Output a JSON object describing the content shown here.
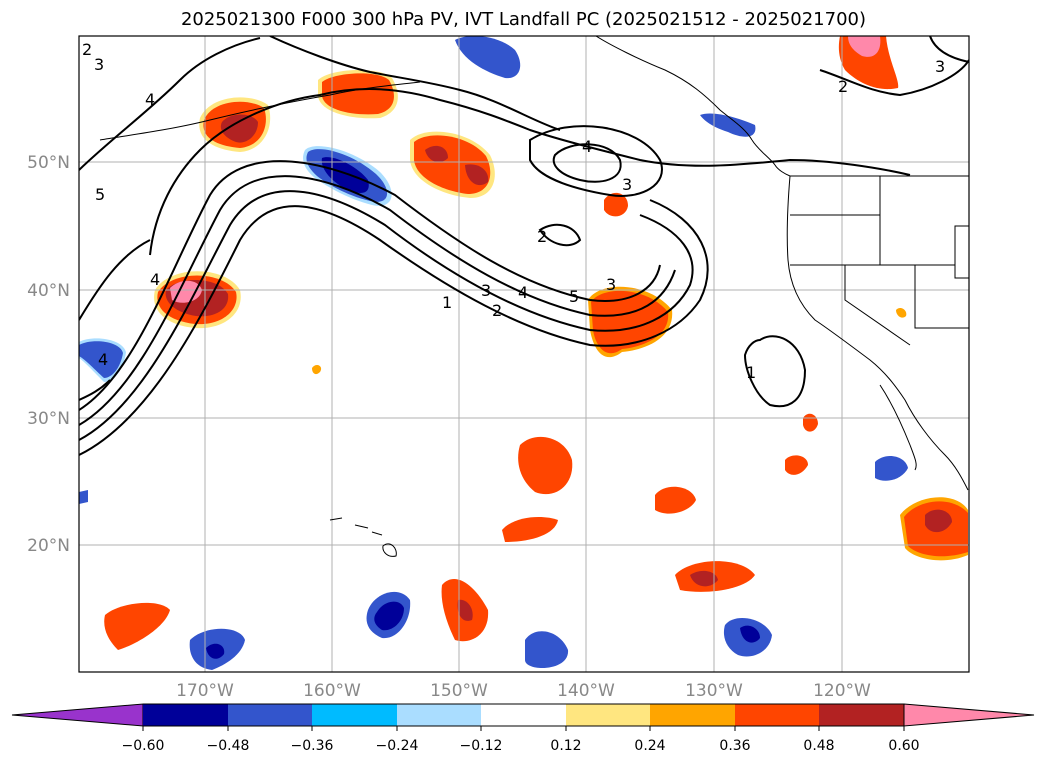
{
  "title": "2025021300 F000 300 hPa PV, IVT Landfall PC (2025021512 - 2025021700)",
  "lat_labels": [
    "50°N",
    "40°N",
    "30°N",
    "20°N"
  ],
  "lon_labels": [
    "170°W",
    "160°W",
    "150°W",
    "140°W",
    "130°W",
    "120°W"
  ],
  "colorbar": {
    "colors": [
      "#9933cc",
      "#000099",
      "#3355cc",
      "#00bbff",
      "#aaddff",
      "#ffffff",
      "#ffe680",
      "#ffa500",
      "#ff4500",
      "#b22222",
      "#ff88aa"
    ],
    "labels": [
      "−0.60",
      "−0.48",
      "−0.36",
      "−0.24",
      "−0.12",
      "0.12",
      "0.24",
      "0.36",
      "0.48",
      "0.60"
    ]
  },
  "contour_labels": [
    "1",
    "2",
    "3",
    "4",
    "5",
    "2",
    "3",
    "4",
    "3",
    "2",
    "4",
    "4",
    "5",
    "3",
    "2",
    "1",
    "4",
    "3"
  ]
}
